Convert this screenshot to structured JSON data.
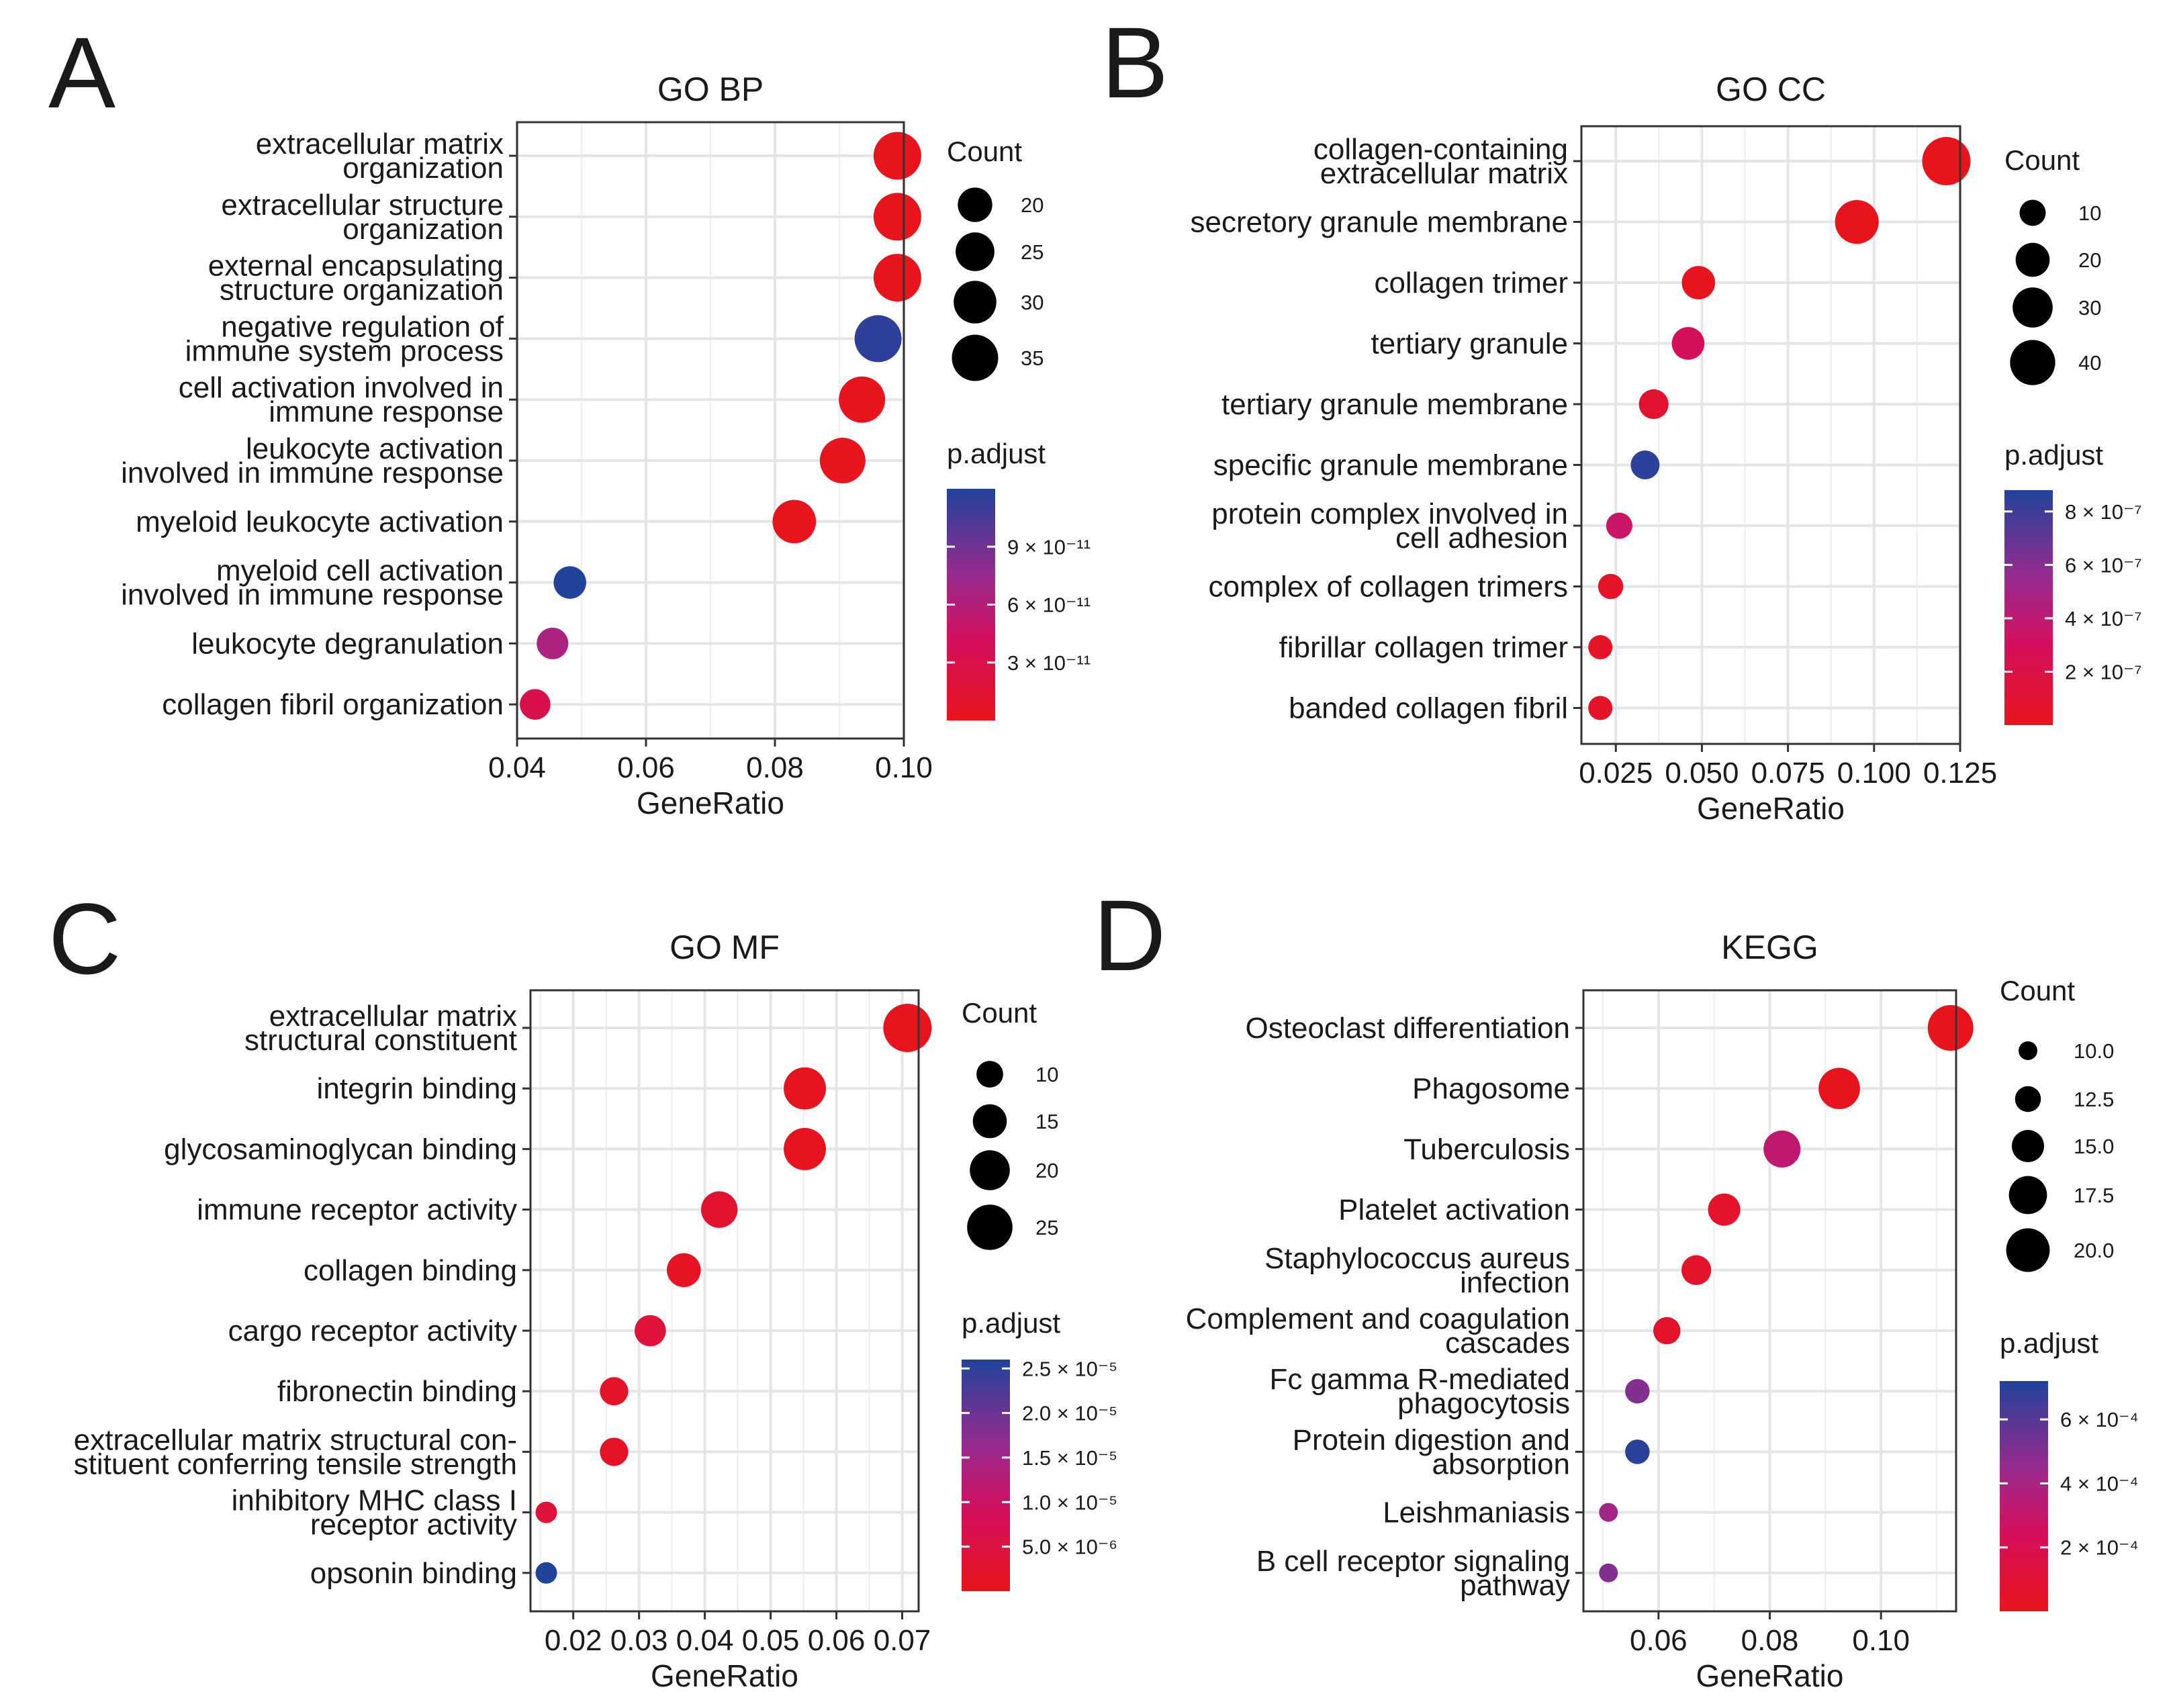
{
  "colors": {
    "low_padj": "#e8141c",
    "mid_padj": "#c8106e",
    "high_padj": "#21439a"
  },
  "chart_data": [
    {
      "panel": "A",
      "type": "scatter",
      "title": "GO BP",
      "xlabel": "GeneRatio",
      "xlim": [
        0.04,
        0.1
      ],
      "xticks": [
        0.04,
        0.06,
        0.08,
        0.1
      ],
      "xtick_labels": [
        "0.04",
        "0.06",
        "0.08",
        "0.10"
      ],
      "terms": [
        {
          "label": [
            "extracellular matrix",
            "organization"
          ],
          "x": 0.099,
          "count": 37,
          "padj": 1e-13
        },
        {
          "label": [
            "extracellular structure",
            "organization"
          ],
          "x": 0.099,
          "count": 37,
          "padj": 1e-13
        },
        {
          "label": [
            "external encapsulating",
            "structure organization"
          ],
          "x": 0.099,
          "count": 37,
          "padj": 1e-13
        },
        {
          "label": [
            "negative regulation of",
            "immune system process"
          ],
          "x": 0.096,
          "count": 36,
          "padj": 1.15e-10
        },
        {
          "label": [
            "cell activation involved in",
            "immune response"
          ],
          "x": 0.0935,
          "count": 35,
          "padj": 1e-12
        },
        {
          "label": [
            "leukocyte activation",
            "involved in immune response"
          ],
          "x": 0.0905,
          "count": 34,
          "padj": 1e-12
        },
        {
          "label": [
            "myeloid leukocyte activation"
          ],
          "x": 0.083,
          "count": 31,
          "padj": 5e-13
        },
        {
          "label": [
            "myeloid cell activation",
            "involved in immune response"
          ],
          "x": 0.0482,
          "count": 18,
          "padj": 1.2e-10
        },
        {
          "label": [
            "leukocyte degranulation"
          ],
          "x": 0.0455,
          "count": 17,
          "padj": 6.5e-11
        },
        {
          "label": [
            "collagen fibril organization"
          ],
          "x": 0.0428,
          "count": 16,
          "padj": 3e-11
        }
      ],
      "size_legend": {
        "title": "Count",
        "breaks": [
          20,
          25,
          30,
          35
        ],
        "range": [
          15,
          38
        ]
      },
      "color_legend": {
        "title": "p.adjust",
        "ticks": [
          {
            "value": 3e-11,
            "label": "3 × 10⁻¹¹"
          },
          {
            "value": 6e-11,
            "label": "6 × 10⁻¹¹"
          },
          {
            "value": 9e-11,
            "label": "9 × 10⁻¹¹"
          }
        ],
        "range": [
          0,
          1.2e-10
        ]
      }
    },
    {
      "panel": "B",
      "type": "scatter",
      "title": "GO CC",
      "xlabel": "GeneRatio",
      "xlim": [
        0.015,
        0.125
      ],
      "xticks": [
        0.025,
        0.05,
        0.075,
        0.1,
        0.125
      ],
      "xtick_labels": [
        "0.025",
        "0.050",
        "0.075",
        "0.100",
        "0.125"
      ],
      "terms": [
        {
          "label": [
            "collagen-containing",
            "extracellular matrix"
          ],
          "x": 0.121,
          "count": 47,
          "padj": 1e-12
        },
        {
          "label": [
            "secretory granule membrane"
          ],
          "x": 0.095,
          "count": 37,
          "padj": 1e-09
        },
        {
          "label": [
            "collagen trimer"
          ],
          "x": 0.049,
          "count": 19,
          "padj": 1.5e-08
        },
        {
          "label": [
            "tertiary granule"
          ],
          "x": 0.046,
          "count": 18,
          "padj": 3e-07
        },
        {
          "label": [
            "tertiary granule membrane"
          ],
          "x": 0.036,
          "count": 14,
          "padj": 1e-07
        },
        {
          "label": [
            "specific granule membrane"
          ],
          "x": 0.0335,
          "count": 13,
          "padj": 8.5e-07
        },
        {
          "label": [
            "protein complex involved in",
            "cell adhesion"
          ],
          "x": 0.026,
          "count": 10,
          "padj": 3.5e-07
        },
        {
          "label": [
            "complex of collagen trimers"
          ],
          "x": 0.0235,
          "count": 9,
          "padj": 5e-08
        },
        {
          "label": [
            "fibrillar collagen trimer"
          ],
          "x": 0.0205,
          "count": 8,
          "padj": 5e-08
        },
        {
          "label": [
            "banded collagen fibril"
          ],
          "x": 0.0205,
          "count": 8,
          "padj": 5e-08
        }
      ],
      "size_legend": {
        "title": "Count",
        "breaks": [
          10,
          20,
          30,
          40
        ],
        "range": [
          8,
          47
        ]
      },
      "color_legend": {
        "title": "p.adjust",
        "ticks": [
          {
            "value": 2e-07,
            "label": "2 × 10⁻⁷"
          },
          {
            "value": 4e-07,
            "label": "4 × 10⁻⁷"
          },
          {
            "value": 6e-07,
            "label": "6 × 10⁻⁷"
          },
          {
            "value": 8e-07,
            "label": "8 × 10⁻⁷"
          }
        ],
        "range": [
          0,
          8.8e-07
        ]
      }
    },
    {
      "panel": "C",
      "type": "scatter",
      "title": "GO MF",
      "xlabel": "GeneRatio",
      "xlim": [
        0.0135,
        0.0725
      ],
      "xticks": [
        0.02,
        0.03,
        0.04,
        0.05,
        0.06,
        0.07
      ],
      "xtick_labels": [
        "0.02",
        "0.03",
        "0.04",
        "0.05",
        "0.06",
        "0.07"
      ],
      "terms": [
        {
          "label": [
            "extracellular matrix",
            "structural constituent"
          ],
          "x": 0.0708,
          "count": 28,
          "padj": 1e-07
        },
        {
          "label": [
            "integrin binding"
          ],
          "x": 0.0552,
          "count": 22,
          "padj": 5e-07
        },
        {
          "label": [
            "glycosaminoglycan binding"
          ],
          "x": 0.0552,
          "count": 22,
          "padj": 5e-07
        },
        {
          "label": [
            "immune receptor activity"
          ],
          "x": 0.0422,
          "count": 17,
          "padj": 2.5e-06
        },
        {
          "label": [
            "collagen binding"
          ],
          "x": 0.0368,
          "count": 15,
          "padj": 1e-06
        },
        {
          "label": [
            "cargo receptor activity"
          ],
          "x": 0.0317,
          "count": 13,
          "padj": 4e-06
        },
        {
          "label": [
            "fibronectin binding"
          ],
          "x": 0.0262,
          "count": 11,
          "padj": 1.5e-06
        },
        {
          "label": [
            "extracellular matrix structural con-",
            "stituent conferring tensile strength"
          ],
          "x": 0.0262,
          "count": 11,
          "padj": 1.5e-06
        },
        {
          "label": [
            "inhibitory MHC class I",
            "receptor activity"
          ],
          "x": 0.0159,
          "count": 7,
          "padj": 4e-06
        },
        {
          "label": [
            "opsonin binding"
          ],
          "x": 0.0159,
          "count": 7,
          "padj": 2.6e-05
        }
      ],
      "size_legend": {
        "title": "Count",
        "breaks": [
          10,
          15,
          20,
          25
        ],
        "range": [
          7,
          28
        ]
      },
      "color_legend": {
        "title": "p.adjust",
        "ticks": [
          {
            "value": 5e-06,
            "label": "5.0 × 10⁻⁶"
          },
          {
            "value": 1e-05,
            "label": "1.0 × 10⁻⁵"
          },
          {
            "value": 1.5e-05,
            "label": "1.5 × 10⁻⁵"
          },
          {
            "value": 2e-05,
            "label": "2.0 × 10⁻⁵"
          },
          {
            "value": 2.5e-05,
            "label": "2.5 × 10⁻⁵"
          }
        ],
        "range": [
          0,
          2.6e-05
        ]
      }
    },
    {
      "panel": "D",
      "type": "scatter",
      "title": "KEGG",
      "xlabel": "GeneRatio",
      "xlim": [
        0.0465,
        0.1135
      ],
      "xticks": [
        0.06,
        0.08,
        0.1
      ],
      "xtick_labels": [
        "0.06",
        "0.08",
        "0.10"
      ],
      "terms": [
        {
          "label": [
            "Osteoclast differentiation"
          ],
          "x": 0.1125,
          "count": 21,
          "padj": 1e-06
        },
        {
          "label": [
            "Phagosome"
          ],
          "x": 0.0925,
          "count": 19,
          "padj": 5e-06
        },
        {
          "label": [
            "Tuberculosis"
          ],
          "x": 0.0822,
          "count": 17,
          "padj": 0.00032
        },
        {
          "label": [
            "Platelet activation"
          ],
          "x": 0.0718,
          "count": 15,
          "padj": 5e-05
        },
        {
          "label": [
            "Staphylococcus aureus",
            "infection"
          ],
          "x": 0.0668,
          "count": 14,
          "padj": 5e-05
        },
        {
          "label": [
            "Complement and coagulation",
            "cascades"
          ],
          "x": 0.0615,
          "count": 13,
          "padj": 5e-05
        },
        {
          "label": [
            "Fc gamma R-mediated",
            "phagocytosis"
          ],
          "x": 0.0562,
          "count": 12,
          "padj": 0.0005
        },
        {
          "label": [
            "Protein digestion and",
            "absorption"
          ],
          "x": 0.0562,
          "count": 12,
          "padj": 0.0007
        },
        {
          "label": [
            "Leishmaniasis"
          ],
          "x": 0.051,
          "count": 10,
          "padj": 0.00042
        },
        {
          "label": [
            "B cell receptor signaling",
            "pathway"
          ],
          "x": 0.051,
          "count": 10,
          "padj": 0.0005
        }
      ],
      "size_legend": {
        "title": "Count",
        "breaks": [
          10.0,
          12.5,
          15.0,
          17.5,
          20.0
        ],
        "break_labels": [
          "10.0",
          "12.5",
          "15.0",
          "17.5",
          "20.0"
        ],
        "range": [
          10,
          21
        ]
      },
      "color_legend": {
        "title": "p.adjust",
        "ticks": [
          {
            "value": 0.0002,
            "label": "2 × 10⁻⁴"
          },
          {
            "value": 0.0004,
            "label": "4 × 10⁻⁴"
          },
          {
            "value": 0.0006,
            "label": "6 × 10⁻⁴"
          }
        ],
        "range": [
          0,
          0.00072
        ]
      }
    }
  ]
}
